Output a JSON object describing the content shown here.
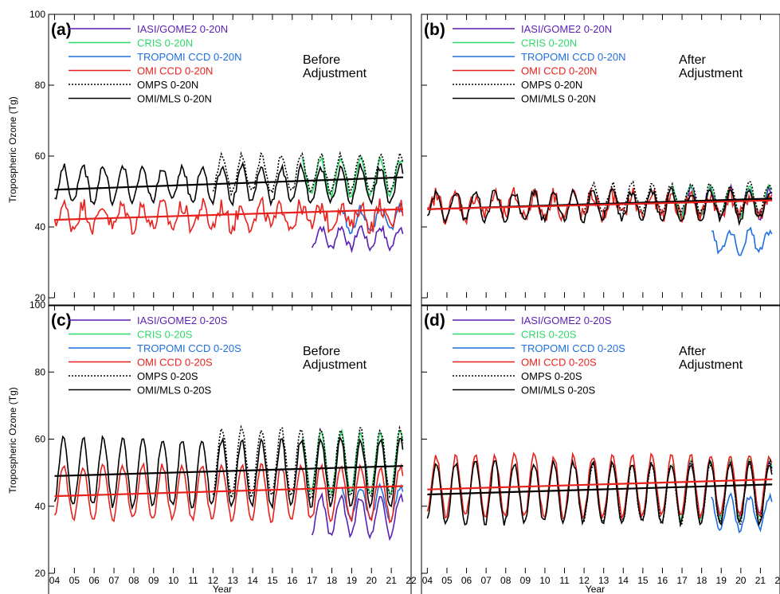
{
  "figure": {
    "ylabel": "Tropospheric Ozone (Tg)",
    "xlabel": "Year",
    "x_tick_labels": [
      "04",
      "05",
      "06",
      "07",
      "08",
      "09",
      "10",
      "11",
      "12",
      "13",
      "14",
      "15",
      "16",
      "17",
      "18",
      "19",
      "20",
      "21",
      "22"
    ]
  },
  "series_styles": [
    {
      "key": "iasi",
      "color": "#5a1fb4",
      "dash": ""
    },
    {
      "key": "cris",
      "color": "#2fd86a",
      "dash": ""
    },
    {
      "key": "tropomi",
      "color": "#1f6fe0",
      "dash": ""
    },
    {
      "key": "omi",
      "color": "#e8211c",
      "dash": ""
    },
    {
      "key": "omps",
      "color": "#000000",
      "dash": "2,2"
    },
    {
      "key": "omimls",
      "color": "#000000",
      "dash": ""
    }
  ],
  "chart_data": [
    {
      "type": "line",
      "panel": "(a)",
      "annotation": [
        "Before",
        "Adjustment"
      ],
      "ylim": [
        20,
        100
      ],
      "yticks": [
        20,
        40,
        60,
        80,
        100
      ],
      "xlim": [
        2003.7,
        2022.0
      ],
      "legend": [
        "IASI/GOME2 0-20N",
        "CRIS 0-20N",
        "TROPOMI CCD 0-20N",
        "OMI CCD 0-20N",
        "OMPS 0-20N",
        "OMI/MLS 0-20N"
      ],
      "series": [
        {
          "key": "iasi",
          "x_start": 2017.0,
          "x_end": 2021.6,
          "mean": 37,
          "amp": 3,
          "noise": 1.2
        },
        {
          "key": "cris",
          "x_start": 2016.5,
          "x_end": 2021.6,
          "mean": 54,
          "amp": 5,
          "noise": 1
        },
        {
          "key": "tropomi",
          "x_start": 2018.5,
          "x_end": 2021.6,
          "mean": 42,
          "amp": 3,
          "noise": 1.5
        },
        {
          "key": "omi",
          "x_start": 2004.0,
          "x_end": 2021.6,
          "mean": 43,
          "amp": 3,
          "noise": 2.5
        },
        {
          "key": "omps",
          "x_start": 2012.0,
          "x_end": 2021.6,
          "mean": 55,
          "amp": 5,
          "noise": 1
        },
        {
          "key": "omimls",
          "x_start": 2004.0,
          "x_end": 2021.6,
          "mean": 52,
          "amp": 5,
          "noise": 1.2
        }
      ],
      "trends": [
        {
          "key": "omimls",
          "x": [
            2004.0,
            2021.6
          ],
          "y": [
            50.5,
            54.0
          ]
        },
        {
          "key": "omi",
          "x": [
            2004.0,
            2021.6
          ],
          "y": [
            42.0,
            45.0
          ]
        }
      ]
    },
    {
      "type": "line",
      "panel": "(b)",
      "annotation": [
        "After",
        "Adjustment"
      ],
      "ylim": [
        20,
        100
      ],
      "yticks": [
        20,
        40,
        60,
        80,
        100
      ],
      "xlim": [
        2003.7,
        2022.0
      ],
      "legend": [
        "IASI/GOME2 0-20N",
        "CRIS 0-20N",
        "TROPOMI CCD 0-20N",
        "OMI CCD 0-20N",
        "OMPS 0-20N",
        "OMI/MLS 0-20N"
      ],
      "series": [
        {
          "key": "iasi",
          "x_start": 2017.0,
          "x_end": 2021.6,
          "mean": 47,
          "amp": 4,
          "noise": 1.2
        },
        {
          "key": "cris",
          "x_start": 2016.5,
          "x_end": 2021.6,
          "mean": 47,
          "amp": 4,
          "noise": 1
        },
        {
          "key": "tropomi",
          "x_start": 2018.5,
          "x_end": 2021.6,
          "mean": 36,
          "amp": 3,
          "noise": 1.2
        },
        {
          "key": "omi",
          "x_start": 2004.0,
          "x_end": 2021.6,
          "mean": 46,
          "amp": 3,
          "noise": 2.5
        },
        {
          "key": "omps",
          "x_start": 2012.0,
          "x_end": 2021.6,
          "mean": 48,
          "amp": 4,
          "noise": 1
        },
        {
          "key": "omimls",
          "x_start": 2004.0,
          "x_end": 2021.6,
          "mean": 46,
          "amp": 4,
          "noise": 1.2
        }
      ],
      "trends": [
        {
          "key": "omimls",
          "x": [
            2004.0,
            2021.6
          ],
          "y": [
            45.0,
            48.0
          ]
        },
        {
          "key": "omi",
          "x": [
            2004.0,
            2021.6
          ],
          "y": [
            45.0,
            47.5
          ]
        }
      ]
    },
    {
      "type": "line",
      "panel": "(c)",
      "annotation": [
        "Before",
        "Adjustment"
      ],
      "ylim": [
        20,
        100
      ],
      "yticks": [
        20,
        40,
        60,
        80,
        100
      ],
      "xlim": [
        2003.7,
        2022.0
      ],
      "legend": [
        "IASI/GOME2 0-20S",
        "CRIS 0-20S",
        "TROPOMI CCD 0-20S",
        "OMI CCD 0-20S",
        "OMPS 0-20S",
        "OMI/MLS 0-20S"
      ],
      "series": [
        {
          "key": "iasi",
          "x_start": 2017.0,
          "x_end": 2021.6,
          "mean": 37,
          "amp": 6,
          "noise": 1
        },
        {
          "key": "cris",
          "x_start": 2016.5,
          "x_end": 2021.6,
          "mean": 53,
          "amp": 9,
          "noise": 1
        },
        {
          "key": "tropomi",
          "x_start": 2018.5,
          "x_end": 2021.6,
          "mean": 41,
          "amp": 5,
          "noise": 1
        },
        {
          "key": "omi",
          "x_start": 2004.0,
          "x_end": 2021.6,
          "mean": 44,
          "amp": 8,
          "noise": 1
        },
        {
          "key": "omps",
          "x_start": 2012.0,
          "x_end": 2021.6,
          "mean": 53,
          "amp": 10,
          "noise": 1
        },
        {
          "key": "omimls",
          "x_start": 2004.0,
          "x_end": 2021.6,
          "mean": 50,
          "amp": 10,
          "noise": 1
        }
      ],
      "trends": [
        {
          "key": "omimls",
          "x": [
            2004.0,
            2021.6
          ],
          "y": [
            49.0,
            52.0
          ]
        },
        {
          "key": "omi",
          "x": [
            2004.0,
            2021.6
          ],
          "y": [
            43.0,
            46.0
          ]
        }
      ]
    },
    {
      "type": "line",
      "panel": "(d)",
      "annotation": [
        "After",
        "Adjustment"
      ],
      "ylim": [
        20,
        100
      ],
      "yticks": [
        20,
        40,
        60,
        80,
        100
      ],
      "xlim": [
        2003.7,
        2022.0
      ],
      "legend": [
        "IASI/GOME2 0-20S",
        "CRIS 0-20S",
        "TROPOMI CCD 0-20S",
        "OMI CCD 0-20S",
        "OMPS 0-20S",
        "OMI/MLS 0-20S"
      ],
      "series": [
        {
          "key": "iasi",
          "x_start": 2017.0,
          "x_end": 2021.6,
          "mean": 45,
          "amp": 8,
          "noise": 1
        },
        {
          "key": "cris",
          "x_start": 2016.5,
          "x_end": 2021.6,
          "mean": 45,
          "amp": 9,
          "noise": 1
        },
        {
          "key": "tropomi",
          "x_start": 2018.5,
          "x_end": 2021.6,
          "mean": 38,
          "amp": 5,
          "noise": 1
        },
        {
          "key": "omi",
          "x_start": 2004.0,
          "x_end": 2021.6,
          "mean": 46,
          "amp": 9,
          "noise": 1
        },
        {
          "key": "omps",
          "x_start": 2012.0,
          "x_end": 2021.6,
          "mean": 44,
          "amp": 9,
          "noise": 1
        },
        {
          "key": "omimls",
          "x_start": 2004.0,
          "x_end": 2021.6,
          "mean": 44,
          "amp": 9,
          "noise": 1
        }
      ],
      "trends": [
        {
          "key": "omi",
          "x": [
            2004.0,
            2021.6
          ],
          "y": [
            45.0,
            48.0
          ]
        },
        {
          "key": "omimls",
          "x": [
            2004.0,
            2021.6
          ],
          "y": [
            43.5,
            46.5
          ]
        }
      ]
    }
  ]
}
